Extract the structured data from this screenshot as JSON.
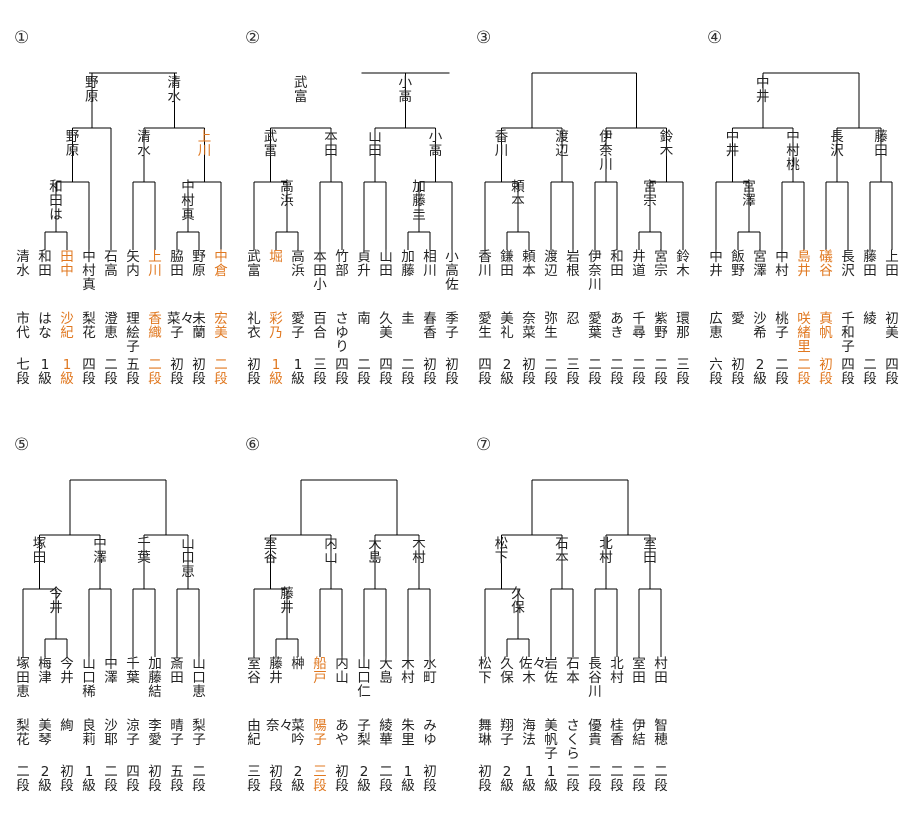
{
  "brackets": [
    {
      "number": "①",
      "players": [
        {
          "surname": "清水",
          "given": "市代",
          "rank": "七段",
          "hl": false
        },
        {
          "surname": "和田",
          "given": "はな",
          "rank": "1級",
          "hl": false
        },
        {
          "surname": "田中",
          "given": "沙紀",
          "rank": "1級",
          "hl": true
        },
        {
          "surname": "中村真",
          "given": "梨花",
          "rank": "四段",
          "hl": false
        },
        {
          "surname": "石高",
          "given": "澄恵",
          "rank": "二段",
          "hl": false
        },
        {
          "surname": "矢内",
          "given": "理絵子",
          "rank": "五段",
          "hl": false
        },
        {
          "surname": "上川",
          "given": "香織",
          "rank": "二段",
          "hl": true
        },
        {
          "surname": "脇田",
          "given": "菜々子",
          "rank": "初段",
          "hl": false
        },
        {
          "surname": "野原",
          "given": "未蘭",
          "rank": "初段",
          "hl": false
        },
        {
          "surname": "中倉",
          "given": "宏美",
          "rank": "二段",
          "hl": true
        }
      ],
      "winners": [
        {
          "text": "和田は",
          "hl": false
        },
        {
          "text": "野原",
          "hl": false
        },
        {
          "text": "清水",
          "hl": false
        },
        {
          "text": "中村真",
          "hl": false
        },
        {
          "text": "上川",
          "hl": true
        },
        {
          "text": "野原",
          "hl": false
        },
        {
          "text": "清水",
          "hl": false
        },
        {
          "text": "",
          "hl": false
        }
      ]
    },
    {
      "number": "②",
      "players": [
        {
          "surname": "武富",
          "given": "礼衣",
          "rank": "初段",
          "hl": false
        },
        {
          "surname": "堀",
          "given": "彩乃",
          "rank": "1級",
          "hl": true
        },
        {
          "surname": "高浜",
          "given": "愛子",
          "rank": "1級",
          "hl": false
        },
        {
          "surname": "本田小",
          "given": "百合",
          "rank": "三段",
          "hl": false
        },
        {
          "surname": "竹部",
          "given": "さゆり",
          "rank": "四段",
          "hl": false
        },
        {
          "surname": "貞升",
          "given": "南",
          "rank": "二段",
          "hl": false
        },
        {
          "surname": "山田",
          "given": "久美",
          "rank": "四段",
          "hl": false
        },
        {
          "surname": "加藤",
          "given": "圭",
          "rank": "二段",
          "hl": false
        },
        {
          "surname": "相川",
          "given": "春香",
          "rank": "初段",
          "hl": false
        },
        {
          "surname": "小高佐",
          "given": "季子",
          "rank": "初段",
          "hl": false
        }
      ],
      "winners": [
        {
          "text": "高浜",
          "hl": false
        },
        {
          "text": "加藤圭",
          "hl": false
        },
        {
          "text": "武富",
          "hl": false
        },
        {
          "text": "本田",
          "hl": false
        },
        {
          "text": "山田",
          "hl": false
        },
        {
          "text": "小高",
          "hl": false
        },
        {
          "text": "武富",
          "hl": false
        },
        {
          "text": "小高",
          "hl": false
        }
      ]
    },
    {
      "number": "③",
      "players": [
        {
          "surname": "香川",
          "given": "愛生",
          "rank": "四段",
          "hl": false
        },
        {
          "surname": "鎌田",
          "given": "美礼",
          "rank": "2級",
          "hl": false
        },
        {
          "surname": "頼本",
          "given": "奈菜",
          "rank": "初段",
          "hl": false
        },
        {
          "surname": "渡辺",
          "given": "弥生",
          "rank": "二段",
          "hl": false
        },
        {
          "surname": "岩根",
          "given": "忍",
          "rank": "三段",
          "hl": false
        },
        {
          "surname": "伊奈川",
          "given": "愛葉",
          "rank": "二段",
          "hl": false
        },
        {
          "surname": "和田",
          "given": "あき",
          "rank": "二段",
          "hl": false
        },
        {
          "surname": "井道",
          "given": "千尋",
          "rank": "二段",
          "hl": false
        },
        {
          "surname": "宮宗",
          "given": "紫野",
          "rank": "二段",
          "hl": false
        },
        {
          "surname": "鈴木",
          "given": "環那",
          "rank": "三段",
          "hl": false
        }
      ],
      "winners": [
        {
          "text": "頼本",
          "hl": false
        },
        {
          "text": "宮宗",
          "hl": false
        },
        {
          "text": "香川",
          "hl": false
        },
        {
          "text": "渡辺",
          "hl": false
        },
        {
          "text": "伊奈川",
          "hl": false
        },
        {
          "text": "鈴木",
          "hl": false
        },
        {
          "text": "",
          "hl": false
        },
        {
          "text": "",
          "hl": false
        }
      ]
    },
    {
      "number": "④",
      "players": [
        {
          "surname": "中井",
          "given": "広恵",
          "rank": "六段",
          "hl": false
        },
        {
          "surname": "飯野",
          "given": "愛",
          "rank": "初段",
          "hl": false
        },
        {
          "surname": "宮澤",
          "given": "沙希",
          "rank": "2級",
          "hl": false
        },
        {
          "surname": "中村",
          "given": "桃子",
          "rank": "二段",
          "hl": false
        },
        {
          "surname": "島井",
          "given": "咲緒里",
          "rank": "二段",
          "hl": true
        },
        {
          "surname": "礒谷",
          "given": "真帆",
          "rank": "初段",
          "hl": true
        },
        {
          "surname": "長沢",
          "given": "千和子",
          "rank": "四段",
          "hl": false
        },
        {
          "surname": "藤田",
          "given": "綾",
          "rank": "二段",
          "hl": false
        },
        {
          "surname": "上田",
          "given": "初美",
          "rank": "四段",
          "hl": false
        }
      ],
      "winners": [
        {
          "text": "宮澤",
          "hl": false
        },
        {
          "text": "中井",
          "hl": false
        },
        {
          "text": "中村桃",
          "hl": false
        },
        {
          "text": "長沢",
          "hl": false
        },
        {
          "text": "藤田",
          "hl": false
        },
        {
          "text": "中井",
          "hl": false
        }
      ]
    },
    {
      "number": "⑤",
      "players": [
        {
          "surname": "塚田恵",
          "given": "梨花",
          "rank": "二段",
          "hl": false
        },
        {
          "surname": "梅津",
          "given": "美琴",
          "rank": "2級",
          "hl": false
        },
        {
          "surname": "今井",
          "given": "絢",
          "rank": "初段",
          "hl": false
        },
        {
          "surname": "山口稀",
          "given": "良莉",
          "rank": "1級",
          "hl": false
        },
        {
          "surname": "中澤",
          "given": "沙耶",
          "rank": "二段",
          "hl": false
        },
        {
          "surname": "千葉",
          "given": "涼子",
          "rank": "四段",
          "hl": false
        },
        {
          "surname": "加藤結",
          "given": "李愛",
          "rank": "初段",
          "hl": false
        },
        {
          "surname": "斎田",
          "given": "晴子",
          "rank": "五段",
          "hl": false
        },
        {
          "surname": "山口恵",
          "given": "梨子",
          "rank": "二段",
          "hl": false
        }
      ],
      "winners": [
        {
          "text": "今井",
          "hl": false
        },
        {
          "text": "塚田",
          "hl": false
        },
        {
          "text": "中澤",
          "hl": false
        },
        {
          "text": "千葉",
          "hl": false
        },
        {
          "text": "山口恵",
          "hl": false
        }
      ]
    },
    {
      "number": "⑥",
      "players": [
        {
          "surname": "室谷",
          "given": "由紀",
          "rank": "三段",
          "hl": false
        },
        {
          "surname": "藤井",
          "given": "奈々",
          "rank": "初段",
          "hl": false
        },
        {
          "surname": "榊",
          "given": "菜吟",
          "rank": "2級",
          "hl": false
        },
        {
          "surname": "船戸",
          "given": "陽子",
          "rank": "三段",
          "hl": true
        },
        {
          "surname": "内山",
          "given": "あや",
          "rank": "初段",
          "hl": false
        },
        {
          "surname": "山口仁",
          "given": "子梨",
          "rank": "2級",
          "hl": false
        },
        {
          "surname": "大島",
          "given": "綾華",
          "rank": "二段",
          "hl": false
        },
        {
          "surname": "木村",
          "given": "朱里",
          "rank": "1級",
          "hl": false
        },
        {
          "surname": "水町",
          "given": "みゆ",
          "rank": "初段",
          "hl": false
        }
      ],
      "winners": [
        {
          "text": "藤井",
          "hl": false
        },
        {
          "text": "室谷",
          "hl": false
        },
        {
          "text": "内山",
          "hl": false
        },
        {
          "text": "大島",
          "hl": false
        },
        {
          "text": "木村",
          "hl": false
        }
      ]
    },
    {
      "number": "⑦",
      "players": [
        {
          "surname": "松下",
          "given": "舞琳",
          "rank": "初段",
          "hl": false
        },
        {
          "surname": "久保",
          "given": "翔子",
          "rank": "2級",
          "hl": false
        },
        {
          "surname": "佐々木",
          "given": "海法",
          "rank": "1級",
          "hl": false
        },
        {
          "surname": "岩佐",
          "given": "美帆子",
          "rank": "1級",
          "hl": false
        },
        {
          "surname": "石本",
          "given": "さくら",
          "rank": "二段",
          "hl": false
        },
        {
          "surname": "長谷川",
          "given": "優貴",
          "rank": "二段",
          "hl": false
        },
        {
          "surname": "北村",
          "given": "桂香",
          "rank": "二段",
          "hl": false
        },
        {
          "surname": "室田",
          "given": "伊結",
          "rank": "二段",
          "hl": false
        },
        {
          "surname": "村田",
          "given": "智穂",
          "rank": "二段",
          "hl": false
        }
      ],
      "winners": [
        {
          "text": "久保",
          "hl": false
        },
        {
          "text": "松下",
          "hl": false
        },
        {
          "text": "石本",
          "hl": false
        },
        {
          "text": "北村",
          "hl": false
        },
        {
          "text": "室田",
          "hl": false
        }
      ]
    }
  ]
}
